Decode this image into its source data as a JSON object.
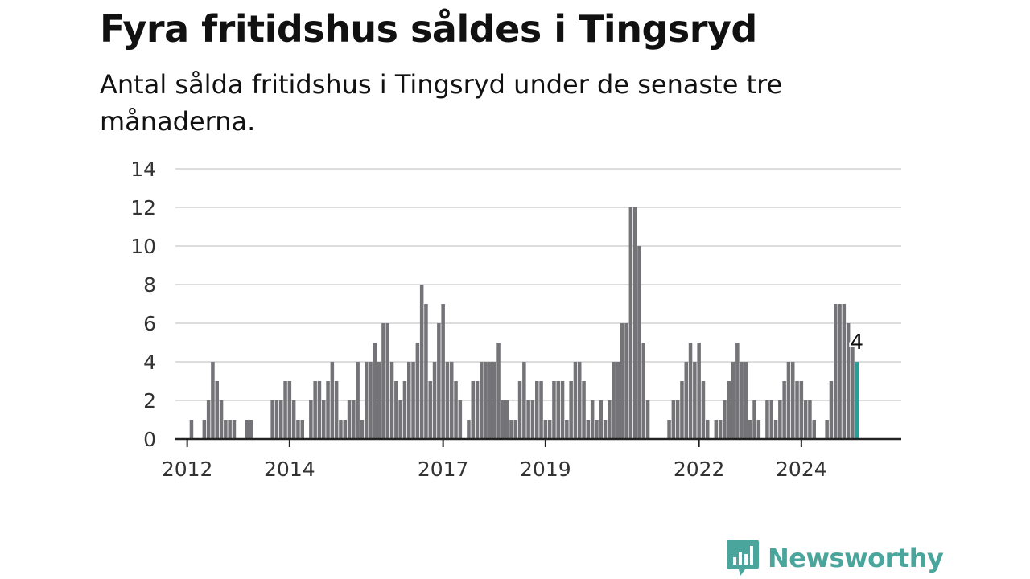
{
  "header": {
    "title": "Fyra fritidshus såldes i Tingsryd",
    "subtitle": "Antal sålda fritidshus i Tingsryd under de senaste tre månaderna."
  },
  "brand": {
    "name": "Newsworthy",
    "icon": "newsworthy-logo-icon",
    "color": "#4aa59c"
  },
  "colors": {
    "bar": "#737378",
    "highlight": "#2a9d96",
    "grid": "#dddddd",
    "axis": "#222222"
  },
  "chart_data": {
    "type": "bar",
    "start": [
      2012,
      1
    ],
    "ylim": [
      0,
      14
    ],
    "yticks": [
      0,
      2,
      4,
      6,
      8,
      10,
      12,
      14
    ],
    "xticks": [
      2012,
      2014,
      2017,
      2019,
      2022,
      2024
    ],
    "grid": true,
    "values": [
      0,
      1,
      0,
      0,
      1,
      2,
      4,
      3,
      2,
      1,
      1,
      1,
      0,
      0,
      1,
      1,
      0,
      0,
      0,
      0,
      2,
      2,
      2,
      3,
      3,
      2,
      1,
      1,
      0,
      2,
      3,
      3,
      2,
      3,
      4,
      3,
      1,
      1,
      2,
      2,
      4,
      1,
      4,
      4,
      5,
      4,
      6,
      6,
      4,
      3,
      2,
      3,
      4,
      4,
      5,
      8,
      7,
      3,
      4,
      6,
      7,
      4,
      4,
      3,
      2,
      0,
      1,
      3,
      3,
      4,
      4,
      4,
      4,
      5,
      2,
      2,
      1,
      1,
      3,
      4,
      2,
      2,
      3,
      3,
      1,
      1,
      3,
      3,
      3,
      1,
      3,
      4,
      4,
      3,
      1,
      2,
      1,
      2,
      1,
      2,
      4,
      4,
      6,
      6,
      12,
      12,
      10,
      5,
      2,
      0,
      0,
      0,
      0,
      1,
      2,
      2,
      3,
      4,
      5,
      4,
      5,
      3,
      1,
      0,
      1,
      1,
      2,
      3,
      4,
      5,
      4,
      4,
      1,
      2,
      1,
      0,
      2,
      2,
      1,
      2,
      3,
      4,
      4,
      3,
      3,
      2,
      2,
      1,
      0,
      0,
      1,
      3,
      7,
      7,
      7,
      6,
      5,
      4
    ],
    "highlight_label": "4"
  }
}
